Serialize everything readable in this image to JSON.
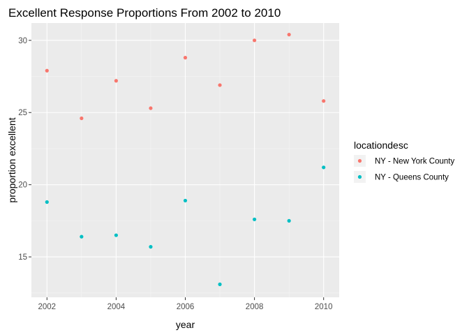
{
  "chart_data": {
    "type": "scatter",
    "title": "Excellent Response Proportions From 2002 to 2010",
    "xlabel": "year",
    "ylabel": "proportion excellent",
    "xlim": [
      2001.55,
      2010.45
    ],
    "ylim": [
      12.2,
      31.2
    ],
    "x_ticks": [
      2002,
      2004,
      2006,
      2008,
      2010
    ],
    "y_ticks": [
      15,
      20,
      25,
      30
    ],
    "grid": true,
    "legend": {
      "title": "locationdesc",
      "placement": "right"
    },
    "series": [
      {
        "name": "NY - New York County",
        "color": "#F8766D",
        "points": [
          {
            "x": 2002,
            "y": 27.9
          },
          {
            "x": 2003,
            "y": 24.6
          },
          {
            "x": 2004,
            "y": 27.2
          },
          {
            "x": 2005,
            "y": 25.3
          },
          {
            "x": 2006,
            "y": 28.8
          },
          {
            "x": 2007,
            "y": 26.9
          },
          {
            "x": 2008,
            "y": 30.0
          },
          {
            "x": 2009,
            "y": 30.4
          },
          {
            "x": 2010,
            "y": 25.8
          }
        ]
      },
      {
        "name": "NY - Queens County",
        "color": "#00BFC4",
        "points": [
          {
            "x": 2002,
            "y": 18.8
          },
          {
            "x": 2003,
            "y": 16.4
          },
          {
            "x": 2004,
            "y": 16.5
          },
          {
            "x": 2005,
            "y": 15.7
          },
          {
            "x": 2006,
            "y": 18.9
          },
          {
            "x": 2007,
            "y": 13.1
          },
          {
            "x": 2008,
            "y": 17.6
          },
          {
            "x": 2009,
            "y": 17.5
          },
          {
            "x": 2010,
            "y": 21.2
          }
        ]
      }
    ]
  },
  "theme": {
    "panel_background": "#EBEBEB",
    "major_grid_color": "#FFFFFF",
    "minor_grid_color": "#F5F5F5",
    "tick_color": "#333333"
  }
}
